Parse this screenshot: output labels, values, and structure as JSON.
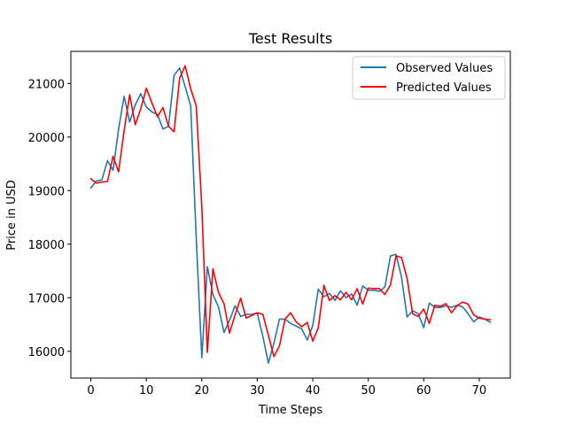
{
  "chart_data": {
    "type": "line",
    "title": "Test Results",
    "xlabel": "Time Steps",
    "ylabel": "Price in USD",
    "xlim": [
      -3.6,
      75.6
    ],
    "ylim": [
      15500,
      21600
    ],
    "xticks": [
      0,
      10,
      20,
      30,
      40,
      50,
      60,
      70
    ],
    "yticks": [
      16000,
      17000,
      18000,
      19000,
      20000,
      21000
    ],
    "legend_position": "top-right",
    "grid": false,
    "series": [
      {
        "name": "Observed Values",
        "color": "#1f77b4",
        "values": [
          19050,
          19180,
          19200,
          19560,
          19380,
          20150,
          20760,
          20280,
          20600,
          20810,
          20560,
          20470,
          20420,
          20150,
          20200,
          21150,
          21290,
          20940,
          20580,
          18100,
          15880,
          17580,
          17060,
          16830,
          16350,
          16580,
          16850,
          16650,
          16690,
          16690,
          16710,
          16280,
          15780,
          16150,
          16600,
          16600,
          16520,
          16470,
          16420,
          16210,
          16480,
          17160,
          17020,
          17080,
          16950,
          17130,
          17000,
          17070,
          16860,
          17220,
          17140,
          17140,
          17120,
          17200,
          17780,
          17810,
          17380,
          16640,
          16760,
          16700,
          16440,
          16900,
          16820,
          16820,
          16850,
          16820,
          16860,
          16830,
          16700,
          16550,
          16640,
          16600,
          16540
        ]
      },
      {
        "name": "Predicted Values",
        "color": "#ff0000",
        "values": [
          19220,
          19140,
          19160,
          19170,
          19640,
          19350,
          20120,
          20790,
          20230,
          20530,
          20910,
          20640,
          20380,
          20550,
          20200,
          20100,
          21100,
          21330,
          20900,
          20580,
          18700,
          15980,
          17540,
          17100,
          16890,
          16340,
          16680,
          16990,
          16620,
          16670,
          16720,
          16690,
          16300,
          15900,
          16100,
          16600,
          16720,
          16550,
          16460,
          16540,
          16190,
          16440,
          17230,
          16950,
          17040,
          16960,
          17100,
          16960,
          17170,
          16880,
          17180,
          17170,
          17170,
          17060,
          17240,
          17780,
          17750,
          17360,
          16700,
          16650,
          16790,
          16520,
          16860,
          16840,
          16890,
          16720,
          16850,
          16920,
          16880,
          16680,
          16620,
          16600,
          16590
        ]
      }
    ]
  }
}
